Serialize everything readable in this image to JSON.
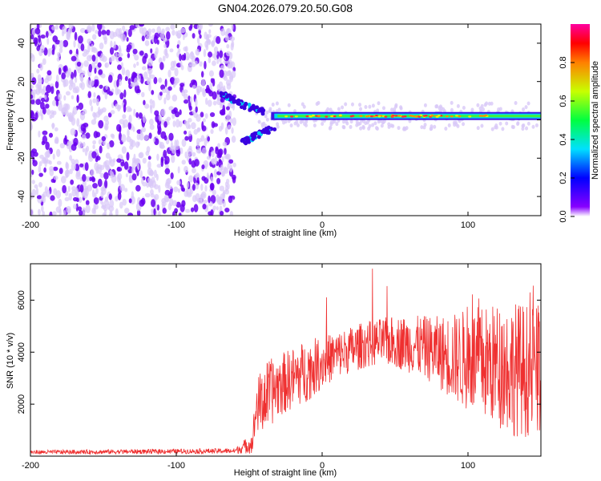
{
  "title": "GN04.2026.079.20.50.G08",
  "colors": {
    "snr_line": "#ef3030",
    "spectro_background": "#ffffff",
    "scatter_strong": "#6a00f0",
    "scatter_weak": "#d8c8f8"
  },
  "chart_data": [
    {
      "id": "spectrogram",
      "type": "heatmap",
      "xlabel": "Height of straight line (km)",
      "ylabel": "Frequency (Hz)",
      "xlim": [
        -200,
        150
      ],
      "ylim": [
        -50,
        50
      ],
      "xticks": [
        -200,
        -100,
        0,
        100
      ],
      "yticks": [
        -40,
        -20,
        0,
        20,
        40
      ],
      "noise_region_x": [
        -200,
        -60
      ],
      "signal_ridge": {
        "x_start": -35,
        "x_end": 150,
        "frequency": 2
      },
      "converging_branches": [
        {
          "x": [
            -70,
            -55,
            -40
          ],
          "frequency": [
            14,
            8,
            4
          ]
        },
        {
          "x": [
            -55,
            -45,
            -32
          ],
          "frequency": [
            -12,
            -8,
            -4
          ]
        }
      ],
      "colorbar": {
        "label": "Normalized spectral amplitude",
        "range": [
          0,
          1
        ],
        "ticks": [
          0.0,
          0.2,
          0.4,
          0.6,
          0.8
        ]
      }
    },
    {
      "id": "snr",
      "type": "line",
      "xlabel": "Height of straight line (km)",
      "ylabel": "SNR (10 * v/v)",
      "xlim": [
        -200,
        150
      ],
      "ylim": [
        0,
        7400
      ],
      "xticks": [
        -200,
        -100,
        0,
        100
      ],
      "yticks": [
        2000,
        4000,
        6000
      ],
      "series": [
        {
          "name": "SNR",
          "envelope_x": [
            -200,
            -60,
            -48,
            -45,
            -40,
            -30,
            -20,
            -10,
            0,
            10,
            20,
            30,
            40,
            50,
            60,
            70,
            80,
            90,
            100,
            110,
            120,
            130,
            140,
            150
          ],
          "envelope_y": [
            150,
            200,
            500,
            1900,
            2200,
            2700,
            3000,
            3300,
            3600,
            3900,
            4100,
            4300,
            4400,
            4400,
            4300,
            4200,
            4000,
            3800,
            3700,
            3600,
            3500,
            3400,
            3300,
            3300
          ],
          "spread_y": [
            80,
            100,
            400,
            1000,
            1400,
            1200,
            1200,
            1200,
            1000,
            900,
            900,
            900,
            900,
            1000,
            1100,
            1200,
            1400,
            1700,
            2000,
            2200,
            2400,
            2600,
            2600,
            2500
          ],
          "peak_values": [
            4100,
            6500,
            6900,
            7400
          ]
        }
      ]
    }
  ]
}
